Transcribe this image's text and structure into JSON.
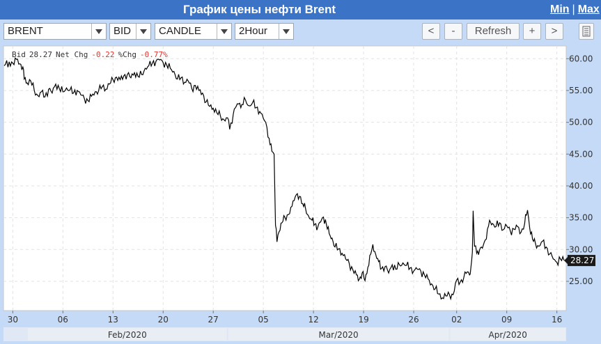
{
  "window": {
    "title": "График цены нефти Brent",
    "min_label": "Min",
    "separator": "|",
    "max_label": "Max"
  },
  "toolbar": {
    "instrument": "BRENT",
    "price_type": "BID",
    "chart_style": "CANDLE",
    "interval": "2Hour",
    "prev_label": "<",
    "zoom_out_label": "-",
    "refresh_label": "Refresh",
    "zoom_in_label": "+",
    "next_label": ">"
  },
  "info": {
    "bid_label": "Bid",
    "bid_value": "28.27",
    "netchg_label": "Net Chg",
    "netchg_value": "-0.22",
    "pctchg_label": "%Chg",
    "pctchg_value": "-0.77%"
  },
  "colors": {
    "accent": "#3b74c7",
    "toolbar": "#c5daf6",
    "negative": "#e8322c",
    "series": "#000000"
  },
  "chart_data": {
    "type": "line",
    "title": "",
    "xlabel": "",
    "ylabel": "",
    "x_unit": "days since Jan 30 2020",
    "xlim": [
      -1.3,
      77.3
    ],
    "ylim": [
      20.4,
      62.0
    ],
    "grid": true,
    "y_ticks": [
      25.0,
      30.0,
      35.0,
      40.0,
      45.0,
      50.0,
      55.0,
      60.0
    ],
    "x_ticks": [
      {
        "x": 0,
        "label": "30"
      },
      {
        "x": 7,
        "label": "06"
      },
      {
        "x": 14,
        "label": "13"
      },
      {
        "x": 21,
        "label": "20"
      },
      {
        "x": 28,
        "label": "27"
      },
      {
        "x": 35,
        "label": "05"
      },
      {
        "x": 42,
        "label": "12"
      },
      {
        "x": 49,
        "label": "19"
      },
      {
        "x": 56,
        "label": "26"
      },
      {
        "x": 62,
        "label": "02"
      },
      {
        "x": 69,
        "label": "09"
      },
      {
        "x": 76,
        "label": "16"
      }
    ],
    "months": [
      {
        "label": "Feb/2020",
        "x_start": 2,
        "x_end": 30
      },
      {
        "label": "Mar/2020",
        "x_start": 30,
        "x_end": 61
      },
      {
        "label": "Apr/2020",
        "x_start": 61,
        "x_end": 77.3
      }
    ],
    "last_value": 28.27,
    "series": [
      {
        "values": [
          [
            -1.2,
            58.9
          ],
          [
            -0.5,
            59.5
          ],
          [
            0,
            59.3
          ],
          [
            0.5,
            59.9
          ],
          [
            1,
            59.2
          ],
          [
            1.4,
            58.7
          ],
          [
            1.6,
            56.8
          ],
          [
            2.0,
            56.2
          ],
          [
            2.5,
            56.5
          ],
          [
            3.0,
            55.0
          ],
          [
            3.5,
            54.2
          ],
          [
            4.0,
            54.8
          ],
          [
            4.5,
            54.0
          ],
          [
            5.0,
            55.2
          ],
          [
            5.5,
            54.6
          ],
          [
            6.0,
            56.0
          ],
          [
            6.5,
            55.3
          ],
          [
            7.0,
            54.8
          ],
          [
            7.5,
            55.4
          ],
          [
            8.0,
            55.1
          ],
          [
            8.5,
            54.6
          ],
          [
            9.0,
            55.0
          ],
          [
            9.5,
            54.3
          ],
          [
            10.0,
            53.7
          ],
          [
            10.5,
            53.4
          ],
          [
            11.0,
            54.1
          ],
          [
            11.5,
            54.8
          ],
          [
            12.0,
            55.0
          ],
          [
            12.5,
            55.6
          ],
          [
            13.0,
            55.2
          ],
          [
            13.5,
            56.0
          ],
          [
            14.0,
            56.7
          ],
          [
            14.5,
            57.1
          ],
          [
            15.0,
            56.7
          ],
          [
            15.5,
            57.3
          ],
          [
            16.0,
            57.5
          ],
          [
            16.5,
            57.0
          ],
          [
            17.0,
            57.8
          ],
          [
            17.5,
            57.2
          ],
          [
            18.0,
            57.5
          ],
          [
            18.5,
            58.5
          ],
          [
            19.0,
            58.9
          ],
          [
            19.5,
            59.3
          ],
          [
            20.0,
            59.6
          ],
          [
            20.5,
            59.8
          ],
          [
            21.0,
            59.4
          ],
          [
            21.5,
            59.0
          ],
          [
            22.0,
            58.5
          ],
          [
            22.5,
            58.0
          ],
          [
            23.0,
            56.8
          ],
          [
            23.5,
            57.0
          ],
          [
            24.0,
            56.3
          ],
          [
            24.5,
            56.5
          ],
          [
            25.0,
            55.3
          ],
          [
            25.5,
            55.8
          ],
          [
            26.0,
            55.0
          ],
          [
            26.5,
            54.6
          ],
          [
            27.0,
            53.2
          ],
          [
            27.5,
            52.5
          ],
          [
            28.0,
            52.2
          ],
          [
            28.5,
            51.5
          ],
          [
            29.0,
            51.0
          ],
          [
            29.5,
            50.4
          ],
          [
            30.0,
            50.7
          ],
          [
            30.3,
            48.9
          ],
          [
            30.8,
            51.3
          ],
          [
            31.2,
            52.5
          ],
          [
            31.7,
            53.0
          ],
          [
            32.0,
            52.8
          ],
          [
            32.5,
            53.5
          ],
          [
            33.0,
            52.6
          ],
          [
            33.5,
            53.1
          ],
          [
            34.0,
            52.3
          ],
          [
            34.5,
            51.7
          ],
          [
            35.0,
            50.6
          ],
          [
            35.5,
            49.2
          ],
          [
            35.8,
            47.5
          ],
          [
            36.2,
            45.4
          ],
          [
            36.5,
            45.0
          ],
          [
            36.7,
            33.8
          ],
          [
            36.9,
            31.2
          ],
          [
            37.2,
            32.8
          ],
          [
            37.6,
            34.2
          ],
          [
            38.0,
            35.1
          ],
          [
            38.5,
            35.5
          ],
          [
            39.0,
            36.8
          ],
          [
            39.3,
            37.7
          ],
          [
            39.6,
            38.6
          ],
          [
            39.9,
            37.9
          ],
          [
            40.2,
            38.3
          ],
          [
            40.5,
            37.2
          ],
          [
            40.9,
            36.4
          ],
          [
            41.3,
            35.3
          ],
          [
            41.8,
            34.6
          ],
          [
            42.2,
            34.0
          ],
          [
            42.6,
            33.5
          ],
          [
            43.0,
            34.3
          ],
          [
            43.4,
            35.1
          ],
          [
            43.8,
            34.0
          ],
          [
            44.2,
            32.5
          ],
          [
            44.6,
            31.8
          ],
          [
            45.0,
            30.4
          ],
          [
            45.5,
            30.1
          ],
          [
            46.0,
            29.4
          ],
          [
            46.5,
            28.5
          ],
          [
            47.0,
            27.8
          ],
          [
            47.5,
            26.8
          ],
          [
            48.0,
            26.0
          ],
          [
            48.4,
            25.3
          ],
          [
            48.8,
            26.3
          ],
          [
            49.2,
            25.1
          ],
          [
            49.6,
            27.2
          ],
          [
            50.0,
            29.3
          ],
          [
            50.3,
            30.8
          ],
          [
            50.7,
            29.2
          ],
          [
            51.1,
            28.1
          ],
          [
            51.5,
            27.0
          ],
          [
            52.0,
            27.3
          ],
          [
            52.5,
            26.3
          ],
          [
            53.0,
            27.6
          ],
          [
            53.5,
            26.9
          ],
          [
            54.0,
            27.6
          ],
          [
            54.5,
            27.9
          ],
          [
            55.0,
            27.5
          ],
          [
            55.5,
            27.1
          ],
          [
            56.0,
            26.6
          ],
          [
            56.5,
            26.9
          ],
          [
            57.0,
            26.6
          ],
          [
            57.5,
            26.0
          ],
          [
            58.0,
            25.4
          ],
          [
            58.5,
            24.6
          ],
          [
            59.0,
            23.8
          ],
          [
            59.5,
            23.0
          ],
          [
            60.0,
            22.4
          ],
          [
            60.5,
            22.7
          ],
          [
            61.0,
            22.9
          ],
          [
            61.5,
            22.9
          ],
          [
            62.0,
            25.2
          ],
          [
            62.5,
            24.9
          ],
          [
            63.0,
            25.6
          ],
          [
            63.5,
            26.5
          ],
          [
            63.8,
            26.0
          ],
          [
            64.0,
            27.3
          ],
          [
            64.2,
            29.6
          ],
          [
            64.3,
            36.1
          ],
          [
            64.5,
            30.5
          ],
          [
            64.8,
            29.4
          ],
          [
            65.2,
            29.9
          ],
          [
            65.6,
            30.2
          ],
          [
            66.0,
            31.5
          ],
          [
            66.3,
            33.2
          ],
          [
            66.6,
            34.6
          ],
          [
            67.0,
            34.1
          ],
          [
            67.5,
            33.6
          ],
          [
            68.0,
            34.2
          ],
          [
            68.5,
            33.1
          ],
          [
            69.0,
            33.7
          ],
          [
            69.5,
            32.9
          ],
          [
            70.0,
            33.2
          ],
          [
            70.5,
            33.6
          ],
          [
            71.0,
            32.7
          ],
          [
            71.5,
            34.1
          ],
          [
            71.9,
            36.2
          ],
          [
            72.2,
            33.4
          ],
          [
            72.6,
            31.6
          ],
          [
            73.0,
            31.0
          ],
          [
            73.5,
            30.5
          ],
          [
            74.0,
            31.3
          ],
          [
            74.5,
            30.4
          ],
          [
            75.0,
            29.3
          ],
          [
            75.5,
            28.5
          ],
          [
            76.0,
            28.0
          ],
          [
            76.5,
            28.5
          ],
          [
            77.0,
            28.3
          ]
        ]
      }
    ]
  }
}
